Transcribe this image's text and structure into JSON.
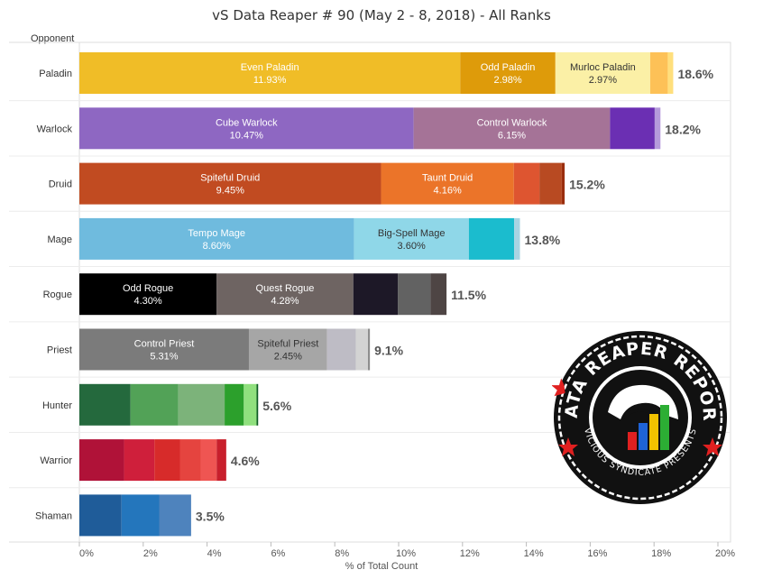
{
  "title": "vS Data Reaper # 90 (May 2 - 8, 2018) - All Ranks",
  "opponent_label": "Opponent",
  "x_axis_label": "% of Total Count",
  "logo": {
    "top_text": "DATA REAPER REPORT",
    "bottom_text": "VICIOUS SYNDICATE PRESENTS"
  },
  "chart_data": {
    "type": "bar",
    "orientation": "horizontal",
    "stacked": true,
    "title": "vS Data Reaper # 90 (May 2 - 8, 2018) - All Ranks",
    "xlabel": "% of Total Count",
    "ylabel": "Opponent",
    "xlim": [
      0,
      20
    ],
    "x_ticks": [
      "0%",
      "2%",
      "4%",
      "6%",
      "8%",
      "10%",
      "12%",
      "14%",
      "16%",
      "18%",
      "20%"
    ],
    "rows": [
      {
        "class": "Paladin",
        "total_label": "18.6%",
        "segments": [
          {
            "name": "Even Paladin",
            "value": 11.93,
            "value_label": "11.93%",
            "color": "#F0BD27",
            "text_color": "#ffffff"
          },
          {
            "name": "Odd Paladin",
            "value": 2.98,
            "value_label": "2.98%",
            "color": "#DE9B0A",
            "text_color": "#ffffff"
          },
          {
            "name": "Murloc Paladin",
            "value": 2.97,
            "value_label": "2.97%",
            "color": "#FBF0A6",
            "text_color": "#333333"
          },
          {
            "name": "",
            "value": 0.55,
            "value_label": "",
            "color": "#FDC157",
            "text_color": "#ffffff"
          },
          {
            "name": "",
            "value": 0.17,
            "value_label": "",
            "color": "#FFDF7C",
            "text_color": "#ffffff"
          }
        ]
      },
      {
        "class": "Warlock",
        "total_label": "18.2%",
        "segments": [
          {
            "name": "Cube Warlock",
            "value": 10.47,
            "value_label": "10.47%",
            "color": "#8E67C2",
            "text_color": "#ffffff"
          },
          {
            "name": "Control Warlock",
            "value": 6.15,
            "value_label": "6.15%",
            "color": "#A57397",
            "text_color": "#ffffff"
          },
          {
            "name": "",
            "value": 1.4,
            "value_label": "",
            "color": "#6B2FB3",
            "text_color": "#ffffff"
          },
          {
            "name": "",
            "value": 0.18,
            "value_label": "",
            "color": "#B59ADB",
            "text_color": "#ffffff"
          }
        ]
      },
      {
        "class": "Druid",
        "total_label": "15.2%",
        "segments": [
          {
            "name": "Spiteful Druid",
            "value": 9.45,
            "value_label": "9.45%",
            "color": "#C14B21",
            "text_color": "#ffffff"
          },
          {
            "name": "Taunt Druid",
            "value": 4.16,
            "value_label": "4.16%",
            "color": "#EB7429",
            "text_color": "#ffffff"
          },
          {
            "name": "",
            "value": 0.8,
            "value_label": "",
            "color": "#DE5530",
            "text_color": "#ffffff"
          },
          {
            "name": "",
            "value": 0.7,
            "value_label": "",
            "color": "#B84A22",
            "text_color": "#ffffff"
          },
          {
            "name": "",
            "value": 0.09,
            "value_label": "",
            "color": "#9A2E0E",
            "text_color": "#ffffff"
          }
        ]
      },
      {
        "class": "Mage",
        "total_label": "13.8%",
        "segments": [
          {
            "name": "Tempo Mage",
            "value": 8.6,
            "value_label": "8.60%",
            "color": "#6FBBDE",
            "text_color": "#ffffff"
          },
          {
            "name": "Big-Spell Mage",
            "value": 3.6,
            "value_label": "3.60%",
            "color": "#8FD7E8",
            "text_color": "#333333"
          },
          {
            "name": "",
            "value": 1.42,
            "value_label": "",
            "color": "#1BBCCE",
            "text_color": "#ffffff"
          },
          {
            "name": "",
            "value": 0.18,
            "value_label": "",
            "color": "#A9D4E3",
            "text_color": "#ffffff"
          }
        ]
      },
      {
        "class": "Rogue",
        "total_label": "11.5%",
        "segments": [
          {
            "name": "Odd Rogue",
            "value": 4.3,
            "value_label": "4.30%",
            "color": "#000000",
            "text_color": "#ffffff"
          },
          {
            "name": "Quest Rogue",
            "value": 4.28,
            "value_label": "4.28%",
            "color": "#6E6462",
            "text_color": "#ffffff"
          },
          {
            "name": "",
            "value": 1.4,
            "value_label": "",
            "color": "#1D1827",
            "text_color": "#ffffff"
          },
          {
            "name": "",
            "value": 1.02,
            "value_label": "",
            "color": "#626262",
            "text_color": "#ffffff"
          },
          {
            "name": "",
            "value": 0.5,
            "value_label": "",
            "color": "#4E4544",
            "text_color": "#ffffff"
          }
        ]
      },
      {
        "class": "Priest",
        "total_label": "9.1%",
        "segments": [
          {
            "name": "Control Priest",
            "value": 5.31,
            "value_label": "5.31%",
            "color": "#7B7B7B",
            "text_color": "#ffffff"
          },
          {
            "name": "Spiteful Priest",
            "value": 2.45,
            "value_label": "2.45%",
            "color": "#A6A6A6",
            "text_color": "#333333"
          },
          {
            "name": "",
            "value": 0.9,
            "value_label": "",
            "color": "#BEBCC5",
            "text_color": "#ffffff"
          },
          {
            "name": "",
            "value": 0.38,
            "value_label": "",
            "color": "#D3D3D3",
            "text_color": "#ffffff"
          },
          {
            "name": "",
            "value": 0.06,
            "value_label": "",
            "color": "#8D8D8D",
            "text_color": "#ffffff"
          }
        ]
      },
      {
        "class": "Hunter",
        "total_label": "5.6%",
        "segments": [
          {
            "name": "",
            "value": 1.6,
            "value_label": "",
            "color": "#24693D",
            "text_color": "#ffffff"
          },
          {
            "name": "",
            "value": 1.5,
            "value_label": "",
            "color": "#52A257",
            "text_color": "#ffffff"
          },
          {
            "name": "",
            "value": 1.45,
            "value_label": "",
            "color": "#7CB37A",
            "text_color": "#ffffff"
          },
          {
            "name": "",
            "value": 0.6,
            "value_label": "",
            "color": "#2CA02C",
            "text_color": "#ffffff"
          },
          {
            "name": "",
            "value": 0.4,
            "value_label": "",
            "color": "#90E07E",
            "text_color": "#ffffff"
          },
          {
            "name": "",
            "value": 0.05,
            "value_label": "",
            "color": "#0F5E25",
            "text_color": "#ffffff"
          }
        ]
      },
      {
        "class": "Warrior",
        "total_label": "4.6%",
        "segments": [
          {
            "name": "",
            "value": 1.4,
            "value_label": "",
            "color": "#B01238",
            "text_color": "#ffffff"
          },
          {
            "name": "",
            "value": 0.95,
            "value_label": "",
            "color": "#CF1F3B",
            "text_color": "#ffffff"
          },
          {
            "name": "",
            "value": 0.8,
            "value_label": "",
            "color": "#D72B2A",
            "text_color": "#ffffff"
          },
          {
            "name": "",
            "value": 0.65,
            "value_label": "",
            "color": "#E5443F",
            "text_color": "#ffffff"
          },
          {
            "name": "",
            "value": 0.5,
            "value_label": "",
            "color": "#EF5552",
            "text_color": "#ffffff"
          },
          {
            "name": "",
            "value": 0.3,
            "value_label": "",
            "color": "#C81F2C",
            "text_color": "#ffffff"
          }
        ]
      },
      {
        "class": "Shaman",
        "total_label": "3.5%",
        "segments": [
          {
            "name": "",
            "value": 1.32,
            "value_label": "",
            "color": "#1F5C99",
            "text_color": "#ffffff"
          },
          {
            "name": "",
            "value": 1.18,
            "value_label": "",
            "color": "#2476BC",
            "text_color": "#ffffff"
          },
          {
            "name": "",
            "value": 1.0,
            "value_label": "",
            "color": "#4E83BD",
            "text_color": "#ffffff"
          }
        ]
      }
    ]
  }
}
